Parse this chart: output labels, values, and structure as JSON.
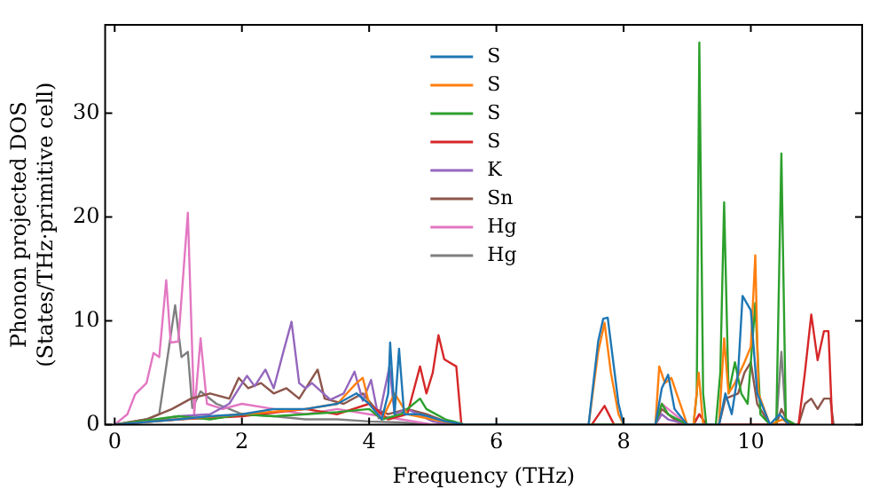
{
  "chart_data": {
    "type": "line",
    "xlabel": "Frequency (THz)",
    "ylabel": "Phonon projected DOS\n(States/THz·primitive cell)",
    "xlim": [
      -0.15,
      11.75
    ],
    "ylim": [
      0,
      38.5
    ],
    "xticks": [
      0,
      2,
      4,
      6,
      8,
      10
    ],
    "yticks": [
      0,
      10,
      20,
      30
    ],
    "grid": false,
    "legend": "top",
    "series": [
      {
        "name": "S",
        "color": "#1f77b4",
        "x": [
          0,
          1,
          1.5,
          2,
          2.5,
          3,
          3.5,
          3.8,
          4,
          4.2,
          4.3,
          4.33,
          4.4,
          4.47,
          4.55,
          4.8,
          5.2,
          5.5,
          7.45,
          7.6,
          7.68,
          7.75,
          7.92,
          8.0,
          8.5,
          8.6,
          8.7,
          8.8,
          9.0,
          9.5,
          9.6,
          9.7,
          9.8,
          9.87,
          10.0,
          10.1,
          10.3,
          10.45,
          10.6
        ],
        "values": [
          0,
          0.5,
          0.8,
          1,
          1.5,
          1.5,
          2,
          3,
          2,
          0.5,
          3,
          7.9,
          1,
          7.3,
          1,
          1,
          0.3,
          0,
          0,
          8,
          10.2,
          10.3,
          2,
          0,
          0,
          3.5,
          4.8,
          1.5,
          0,
          0,
          3,
          1,
          5,
          12.4,
          11,
          3,
          0,
          1,
          0
        ]
      },
      {
        "name": "S",
        "color": "#ff7f0e",
        "x": [
          0,
          1,
          2,
          3,
          3.5,
          3.8,
          3.9,
          4.0,
          4.2,
          4.4,
          4.6,
          5,
          5.4,
          7.45,
          7.6,
          7.7,
          7.8,
          7.92,
          8.0,
          8.5,
          8.56,
          8.65,
          8.75,
          9.0,
          9.1,
          9.18,
          9.25,
          9.5,
          9.58,
          9.65,
          9.75,
          9.9,
          10.0,
          10.07,
          10.12,
          10.3,
          10.5,
          10.6
        ],
        "values": [
          0,
          0.5,
          1,
          1.5,
          2,
          4,
          4.5,
          2,
          0.5,
          3,
          1,
          0.5,
          0,
          0,
          7,
          9.8,
          5,
          1,
          0,
          0,
          5.6,
          4,
          4.5,
          0,
          0,
          5,
          0,
          0,
          8.3,
          3,
          4,
          6,
          7.5,
          16.3,
          3,
          0,
          0.5,
          0
        ]
      },
      {
        "name": "S",
        "color": "#2ca02c",
        "x": [
          0,
          1,
          1.5,
          2,
          2.5,
          3,
          3.5,
          4,
          4.2,
          4.5,
          4.8,
          4.9,
          5.2,
          5.5,
          8.5,
          8.6,
          8.7,
          9.0,
          9.1,
          9.15,
          9.19,
          9.25,
          9.3,
          9.45,
          9.52,
          9.58,
          9.65,
          9.75,
          9.85,
          9.95,
          10.07,
          10.15,
          10.3,
          10.4,
          10.48,
          10.55,
          10.7
        ],
        "values": [
          0,
          0.8,
          0.5,
          1,
          0.8,
          1,
          1.2,
          1.5,
          0.5,
          1,
          2.5,
          1.5,
          0.5,
          0,
          0,
          2,
          1,
          0,
          0,
          3,
          36.8,
          3,
          0,
          0,
          5,
          21.4,
          3,
          6,
          3,
          2,
          11.7,
          1,
          0,
          0,
          26.1,
          0.5,
          0
        ]
      },
      {
        "name": "S",
        "color": "#d62728",
        "x": [
          0,
          1,
          2,
          3,
          3.5,
          4,
          4.3,
          4.6,
          4.8,
          4.9,
          5.0,
          5.09,
          5.18,
          5.26,
          5.37,
          5.45,
          7.5,
          7.7,
          7.85,
          9.1,
          9.19,
          9.3,
          10.75,
          10.85,
          10.95,
          11.05,
          11.15,
          11.22,
          11.28
        ],
        "values": [
          0,
          0.5,
          0.8,
          1.5,
          1,
          2,
          0.5,
          1,
          5.6,
          3,
          5,
          8.6,
          6.3,
          6,
          5.6,
          0,
          0,
          1.8,
          0,
          0,
          1,
          0,
          0,
          5,
          10.6,
          6.2,
          9,
          9,
          0
        ]
      },
      {
        "name": "K",
        "color": "#9467bd",
        "x": [
          0,
          0.5,
          1,
          1.5,
          1.8,
          2.08,
          2.2,
          2.37,
          2.5,
          2.66,
          2.78,
          2.9,
          3.0,
          3.1,
          3.39,
          3.6,
          3.77,
          3.9,
          4.03,
          4.15,
          4.32,
          4.4,
          4.6,
          5.0,
          5.3,
          8.5,
          8.6,
          8.7,
          9.0
        ],
        "values": [
          0,
          0.3,
          0.8,
          1,
          2,
          4.7,
          3.7,
          5.3,
          3.5,
          7.2,
          9.9,
          4,
          3.5,
          4,
          2.4,
          3,
          5.1,
          2.3,
          4.3,
          0.6,
          5.6,
          1,
          1.5,
          0.3,
          0,
          0,
          1,
          0.5,
          0
        ]
      },
      {
        "name": "Sn",
        "color": "#8c564b",
        "x": [
          0,
          0.5,
          0.9,
          1.2,
          1.5,
          1.8,
          1.95,
          2.1,
          2.3,
          2.5,
          2.7,
          2.9,
          3.19,
          3.3,
          3.6,
          3.9,
          4.1,
          4.3,
          4.6,
          4.9,
          5.2,
          5.5,
          8.5,
          8.6,
          8.8,
          9.0,
          9.5,
          9.6,
          9.8,
          9.9,
          10.0,
          10.1,
          10.3,
          10.4,
          10.48,
          10.6,
          10.75,
          10.85,
          10.95,
          11.05,
          11.15,
          11.25,
          11.3
        ],
        "values": [
          0,
          0.5,
          1.5,
          2.5,
          3,
          2.5,
          4.5,
          3.5,
          4,
          3,
          3.5,
          2.5,
          5.3,
          2.5,
          2,
          3,
          1.5,
          1,
          1.5,
          1,
          0.3,
          0,
          0,
          1.5,
          0.5,
          0,
          0,
          2.5,
          3,
          5,
          6,
          2,
          0,
          0,
          1.5,
          0,
          0,
          2,
          2.5,
          1.5,
          2.5,
          2.5,
          0
        ]
      },
      {
        "name": "Hg",
        "color": "#e377c2",
        "x": [
          0,
          0.2,
          0.32,
          0.5,
          0.61,
          0.7,
          0.81,
          0.88,
          1.0,
          1.15,
          1.25,
          1.35,
          1.45,
          1.7,
          2,
          2.5,
          3,
          3.5,
          4,
          4.5,
          5,
          8.5,
          8.6,
          8.7,
          9.0,
          9.1,
          9.19,
          9.3
        ],
        "values": [
          0,
          1,
          2.9,
          4,
          6.9,
          6.5,
          13.9,
          7.9,
          8,
          20.4,
          1,
          8.3,
          2,
          1.5,
          2,
          1.5,
          1,
          1.5,
          1,
          0.5,
          0,
          0,
          2,
          1.5,
          0,
          0,
          1,
          0
        ]
      },
      {
        "name": "Hg",
        "color": "#7f7f7f",
        "x": [
          0,
          0.5,
          0.7,
          0.76,
          0.95,
          1.05,
          1.15,
          1.22,
          1.35,
          1.6,
          2,
          2.5,
          3,
          3.5,
          4,
          4.5,
          5,
          10.4,
          10.48,
          10.55,
          10.65
        ],
        "values": [
          0,
          0.5,
          1,
          3.5,
          11.5,
          6.5,
          7,
          1.6,
          3.2,
          2,
          1,
          0.8,
          0.5,
          0.5,
          0.3,
          0.2,
          0,
          0,
          7,
          0.5,
          0
        ]
      }
    ]
  }
}
